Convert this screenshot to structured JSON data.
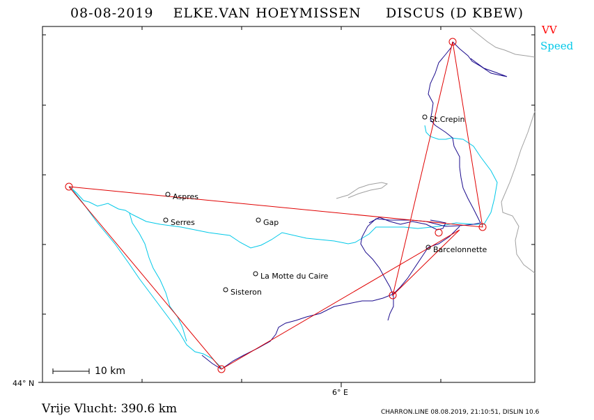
{
  "header": {
    "date": "08-08-2019",
    "pilot": "ELKE.VAN HOEYMISSEN",
    "glider": "DISCUS (D KBEW)"
  },
  "legend": {
    "vv_label": "VV",
    "vv_color": "#ff0000",
    "speed_label": "Speed",
    "speed_color": "#00c8e8"
  },
  "colors": {
    "track": "#1a0a8c",
    "task": "#e00000",
    "relief": "#a0a0a0",
    "frame": "#000000"
  },
  "map": {
    "latitude_label": "44° N",
    "longitude_label": "6° E",
    "scale_label": "10 km",
    "towns": [
      {
        "name": "Aspres"
      },
      {
        "name": "Serres"
      },
      {
        "name": "Gap"
      },
      {
        "name": "St.Crepin"
      },
      {
        "name": "Barcelonnette"
      },
      {
        "name": "La Motte du Caire"
      },
      {
        "name": "Sisteron"
      }
    ]
  },
  "footer": {
    "distance": "Vrije Vlucht:  390.6 km",
    "credits": "CHARRON.LINE 08.08.2019, 21:10:51, DISLIN 10.6"
  }
}
